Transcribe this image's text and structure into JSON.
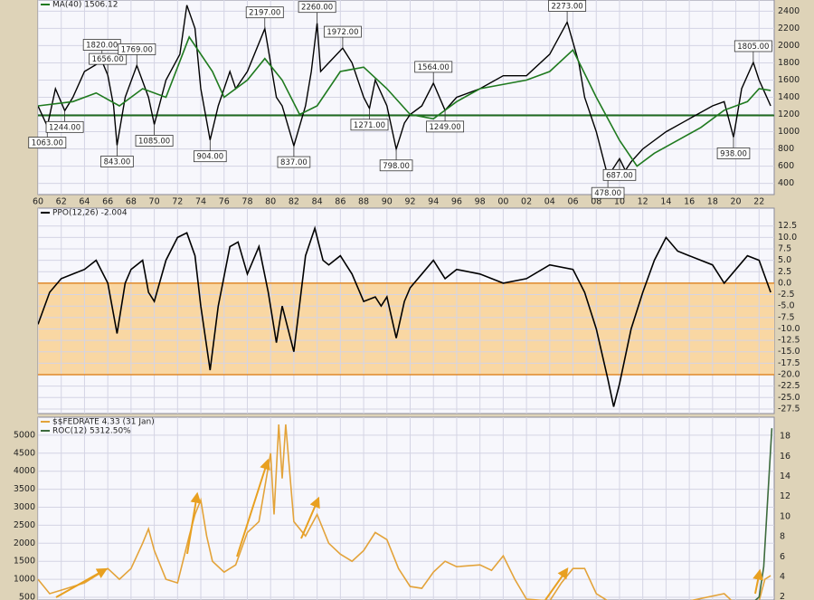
{
  "chart_data": [
    {
      "type": "line",
      "xlim": [
        1960,
        2023.3
      ],
      "ylim": [
        270,
        2530
      ],
      "y_axis_position": "right",
      "xticks": [
        {
          "value": 1960,
          "label": "60"
        },
        {
          "value": 1962,
          "label": "62"
        },
        {
          "value": 1964,
          "label": "64"
        },
        {
          "value": 1966,
          "label": "66"
        },
        {
          "value": 1968,
          "label": "68"
        },
        {
          "value": 1970,
          "label": "70"
        },
        {
          "value": 1972,
          "label": "72"
        },
        {
          "value": 1974,
          "label": "74"
        },
        {
          "value": 1976,
          "label": "76"
        },
        {
          "value": 1978,
          "label": "78"
        },
        {
          "value": 1980,
          "label": "80"
        },
        {
          "value": 1982,
          "label": "82"
        },
        {
          "value": 1984,
          "label": "84"
        },
        {
          "value": 1986,
          "label": "86"
        },
        {
          "value": 1988,
          "label": "88"
        },
        {
          "value": 1990,
          "label": "90"
        },
        {
          "value": 1992,
          "label": "92"
        },
        {
          "value": 1994,
          "label": "94"
        },
        {
          "value": 1996,
          "label": "96"
        },
        {
          "value": 1998,
          "label": "98"
        },
        {
          "value": 2000,
          "label": "00"
        },
        {
          "value": 2002,
          "label": "02"
        },
        {
          "value": 2004,
          "label": "04"
        },
        {
          "value": 2006,
          "label": "06"
        },
        {
          "value": 2008,
          "label": "08"
        },
        {
          "value": 2010,
          "label": "10"
        },
        {
          "value": 2012,
          "label": "12"
        },
        {
          "value": 2014,
          "label": "14"
        },
        {
          "value": 2016,
          "label": "16"
        },
        {
          "value": 2018,
          "label": "18"
        },
        {
          "value": 2020,
          "label": "20"
        },
        {
          "value": 2022,
          "label": "22"
        }
      ],
      "yticks": [
        400,
        600,
        800,
        1000,
        1200,
        1400,
        1600,
        1800,
        2000,
        2200,
        2400
      ],
      "grid": true,
      "hline": 1190,
      "hline_color": "#1f6b1f",
      "series": [
        {
          "color": "#000000",
          "x": [
            1960,
            1960.8,
            1961.5,
            1962.3,
            1963,
            1964,
            1965.5,
            1966,
            1966.5,
            1966.8,
            1967.5,
            1968.5,
            1969.5,
            1970,
            1971,
            1972.2,
            1972.8,
            1973.5,
            1974,
            1974.8,
            1975.5,
            1976.5,
            1977,
            1978,
            1979.5,
            1980.5,
            1981,
            1982,
            1983,
            1983.5,
            1984,
            1984.3,
            1985,
            1986.2,
            1987,
            1988,
            1988.5,
            1989,
            1990,
            1990.8,
            1991.5,
            1992,
            1993,
            1994,
            1995,
            1996,
            1998,
            2000,
            2002,
            2004,
            2005.5,
            2006.5,
            2007,
            2008,
            2009,
            2010,
            2010.5,
            2011,
            2012,
            2014,
            2016,
            2018,
            2019,
            2019.8,
            2020.5,
            2021.5,
            2022,
            2022.5,
            2023
          ],
          "values": [
            1300,
            1063,
            1500,
            1244,
            1400,
            1700,
            1820,
            1656,
            1300,
            843,
            1400,
            1769,
            1400,
            1085,
            1600,
            1900,
            2470,
            2200,
            1500,
            904,
            1300,
            1700,
            1500,
            1700,
            2197,
            1400,
            1300,
            837,
            1300,
            1700,
            2260,
            1700,
            1800,
            1972,
            1800,
            1400,
            1271,
            1600,
            1300,
            798,
            1100,
            1200,
            1300,
            1564,
            1249,
            1400,
            1500,
            1650,
            1650,
            1900,
            2273,
            1800,
            1400,
            1000,
            478,
            687,
            550,
            650,
            800,
            1000,
            1150,
            1300,
            1350,
            938,
            1500,
            1805,
            1600,
            1450,
            1300
          ]
        },
        {
          "name": "MA(40) 1506.12",
          "color": "#1f7a1f",
          "x": [
            1960,
            1963,
            1965,
            1967,
            1969,
            1971,
            1973,
            1975,
            1976,
            1978,
            1979.5,
            1981,
            1982.5,
            1984,
            1986,
            1988,
            1990,
            1992,
            1994,
            1996,
            1998,
            2002,
            2004,
            2006,
            2008,
            2010,
            2011.5,
            2013,
            2015,
            2017,
            2019,
            2021,
            2022,
            2023
          ],
          "values": [
            1300,
            1350,
            1450,
            1300,
            1500,
            1400,
            2100,
            1700,
            1400,
            1600,
            1850,
            1600,
            1200,
            1300,
            1700,
            1750,
            1500,
            1200,
            1150,
            1350,
            1500,
            1600,
            1700,
            1950,
            1400,
            900,
            600,
            750,
            900,
            1050,
            1250,
            1350,
            1500,
            1480
          ]
        }
      ],
      "annotations": [
        {
          "x": 1960.8,
          "y": 1063,
          "label": "1063.00"
        },
        {
          "x": 1962.3,
          "y": 1244,
          "label": "1244.00"
        },
        {
          "x": 1965.5,
          "y": 1820,
          "label": "1820.00"
        },
        {
          "x": 1966,
          "y": 1656,
          "label": "1656.00"
        },
        {
          "x": 1966.8,
          "y": 843,
          "label": "843.00"
        },
        {
          "x": 1968.5,
          "y": 1769,
          "label": "1769.00"
        },
        {
          "x": 1970,
          "y": 1085,
          "label": "1085.00"
        },
        {
          "x": 1974.8,
          "y": 904,
          "label": "904.00"
        },
        {
          "x": 1979.5,
          "y": 2197,
          "label": "2197.00"
        },
        {
          "x": 1982,
          "y": 837,
          "label": "837.00"
        },
        {
          "x": 1984,
          "y": 2260,
          "label": "2260.00"
        },
        {
          "x": 1986.2,
          "y": 1972,
          "label": "1972.00"
        },
        {
          "x": 1988.5,
          "y": 1271,
          "label": "1271.00"
        },
        {
          "x": 1990.8,
          "y": 798,
          "label": "798.00"
        },
        {
          "x": 1994,
          "y": 1564,
          "label": "1564.00"
        },
        {
          "x": 1995,
          "y": 1249,
          "label": "1249.00"
        },
        {
          "x": 2005.5,
          "y": 2273,
          "label": "2273.00"
        },
        {
          "x": 2009,
          "y": 478,
          "label": "478.00"
        },
        {
          "x": 2010,
          "y": 687,
          "label": "687.00"
        },
        {
          "x": 2019.8,
          "y": 938,
          "label": "938.00"
        },
        {
          "x": 2021.5,
          "y": 1805,
          "label": "1805.00"
        }
      ]
    },
    {
      "type": "line",
      "xlim": [
        1960,
        2023.3
      ],
      "ylim": [
        -28.5,
        16.4
      ],
      "y_axis_position": "right",
      "yticks": [
        12.5,
        {
          "value": 10,
          "label": "10.0"
        },
        7.5,
        {
          "value": 5,
          "label": "5.0"
        },
        2.5,
        {
          "value": 0,
          "label": "0.0"
        },
        -2.5,
        {
          "value": -5,
          "label": "-5.0"
        },
        -7.5,
        {
          "value": -10,
          "label": "-10.0"
        },
        -12.5,
        {
          "value": -15,
          "label": "-15.0"
        },
        -17.5,
        {
          "value": -20,
          "label": "-20.0"
        },
        -22.5,
        {
          "value": -25,
          "label": "-25.0"
        },
        -27.5
      ],
      "grid": true,
      "band": [
        0,
        -20
      ],
      "band_color": "#f9d7a3",
      "band_edge_color": "#e0892a",
      "series": [
        {
          "name": "PPO(12,26) -2.004",
          "color": "#000000",
          "x": [
            1960,
            1961,
            1962,
            1963,
            1964,
            1965,
            1966,
            1966.8,
            1967.5,
            1968,
            1969,
            1969.5,
            1970,
            1971,
            1972,
            1972.8,
            1973.5,
            1974,
            1974.8,
            1975.5,
            1976.5,
            1977.2,
            1978,
            1979,
            1979.8,
            1980.5,
            1981,
            1982,
            1983,
            1983.8,
            1984.5,
            1985,
            1986,
            1987,
            1988,
            1989,
            1989.5,
            1990,
            1990.8,
            1991.5,
            1992,
            1993,
            1994,
            1995,
            1996,
            1998,
            2000,
            2002,
            2004,
            2006,
            2007,
            2008,
            2009,
            2009.5,
            2010,
            2011,
            2012,
            2013,
            2014,
            2015,
            2016,
            2018,
            2019,
            2020,
            2021,
            2022,
            2023
          ],
          "values": [
            -9,
            -2,
            1,
            2,
            3,
            5,
            0,
            -11,
            0,
            3,
            5,
            -2,
            -4,
            5,
            10,
            11,
            6,
            -5,
            -19,
            -5,
            8,
            9,
            2,
            8,
            -2,
            -13,
            -5,
            -15,
            6,
            12,
            5,
            4,
            6,
            2,
            -4,
            -3,
            -5,
            -3,
            -12,
            -4,
            -1,
            2,
            5,
            1,
            3,
            2,
            0,
            1,
            4,
            3,
            -2,
            -10,
            -21,
            -27,
            -22,
            -10,
            -2,
            5,
            10,
            7,
            6,
            4,
            0,
            3,
            6,
            5,
            -2
          ]
        }
      ]
    },
    {
      "type": "line",
      "xlim": [
        1960,
        2023.3
      ],
      "ylim": [
        425,
        5500
      ],
      "y2lim": [
        1.7,
        19.9
      ],
      "y_axis_position": "left",
      "yticks": [
        500,
        1000,
        1500,
        2000,
        2500,
        3000,
        3500,
        4000,
        4500,
        5000
      ],
      "y2ticks": [
        2,
        4,
        6,
        8,
        10,
        12,
        14,
        16,
        18
      ],
      "grid": true,
      "series": [
        {
          "name": "$$FEDRATE 4.33 (31 Jan)",
          "color": "#e3a33a",
          "x": [
            1960,
            1961,
            1962,
            1963,
            1964,
            1965,
            1966,
            1967,
            1968,
            1969,
            1969.5,
            1970,
            1971,
            1972,
            1973,
            1973.5,
            1974,
            1974.5,
            1975,
            1976,
            1977,
            1978,
            1979,
            1980,
            1980.3,
            1980.7,
            1981,
            1981.3,
            1982,
            1983,
            1984,
            1985,
            1986,
            1987,
            1988,
            1989,
            1990,
            1991,
            1992,
            1993,
            1994,
            1995,
            1996,
            1998,
            1999,
            2000,
            2001,
            2002,
            2004,
            2005,
            2006,
            2007,
            2008,
            2009,
            2016,
            2019,
            2020,
            2022,
            2022.5,
            2023
          ],
          "values": [
            1000,
            600,
            700,
            800,
            900,
            1100,
            1300,
            1000,
            1300,
            2000,
            2400,
            1800,
            1000,
            900,
            2200,
            2800,
            3200,
            2200,
            1500,
            1200,
            1400,
            2300,
            2600,
            4500,
            2800,
            5300,
            3800,
            5300,
            2600,
            2200,
            2800,
            2000,
            1700,
            1500,
            1800,
            2300,
            2100,
            1300,
            800,
            750,
            1200,
            1500,
            1350,
            1400,
            1250,
            1650,
            1000,
            450,
            400,
            900,
            1300,
            1300,
            600,
            400,
            400,
            600,
            300,
            400,
            1000,
            1100
          ]
        },
        {
          "name": "ROC(12) 5312.50%",
          "color": "#3d6b3d",
          "axis": "y2",
          "x": [
            2021,
            2022,
            2022.4,
            2022.7,
            2022.9,
            2023.1
          ],
          "values": [
            1,
            2,
            5,
            11,
            15,
            18.8
          ]
        }
      ]
    }
  ]
}
